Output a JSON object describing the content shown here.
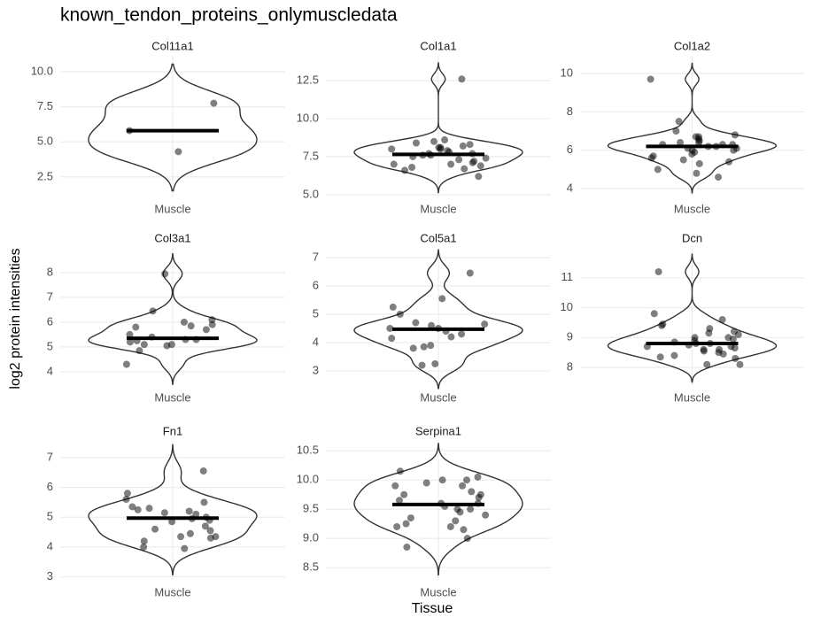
{
  "title": "known_tendon_proteins_onlymuscledata",
  "x_label": "Tissue",
  "y_label": "log2 protein intensities",
  "chart_data": [
    {
      "type": "violin",
      "title": "Col11a1",
      "categories": [
        "Muscle"
      ],
      "values": [
        7.75,
        5.8,
        4.3
      ],
      "median": 5.8,
      "ylim": [
        1.1,
        11.14
      ],
      "yticks": [
        2.5,
        {
          "value": 5,
          "label": "5.0"
        },
        7.5,
        {
          "value": 10,
          "label": "10.0"
        }
      ],
      "grid": true
    },
    {
      "type": "violin",
      "title": "Col1a1",
      "categories": [
        "Muscle"
      ],
      "values": [
        12.6,
        8.6,
        8.5,
        8.4,
        8.3,
        8.2,
        8.1,
        8.1,
        8.0,
        8.0,
        7.9,
        7.8,
        7.7,
        7.7,
        7.6,
        7.6,
        7.5,
        7.4,
        7.3,
        7.2,
        7.1,
        7.0,
        7.0,
        6.9,
        6.8,
        6.7,
        6.6,
        6.2
      ],
      "median": 7.65,
      "ylim": [
        4.88,
        14.13
      ],
      "yticks": [
        {
          "value": 5,
          "label": "5.0"
        },
        7.5,
        {
          "value": 10,
          "label": "10.0"
        },
        12.5
      ],
      "grid": true
    },
    {
      "type": "violin",
      "title": "Col1a2",
      "categories": [
        "Muscle"
      ],
      "values": [
        9.7,
        7.5,
        7.0,
        6.8,
        6.7,
        6.7,
        6.6,
        6.5,
        6.4,
        6.4,
        6.3,
        6.3,
        6.3,
        6.2,
        6.2,
        6.1,
        6.1,
        6.0,
        6.0,
        5.9,
        5.8,
        5.7,
        5.6,
        5.5,
        5.4,
        5.3,
        5.0,
        4.8,
        4.6
      ],
      "median": 6.2,
      "ylim": [
        3.59,
        10.92
      ],
      "yticks": [
        4,
        6,
        8,
        10
      ],
      "grid": true
    },
    {
      "type": "violin",
      "title": "Col3a1",
      "categories": [
        "Muscle"
      ],
      "values": [
        7.95,
        6.45,
        6.1,
        6.0,
        5.9,
        5.85,
        5.8,
        5.7,
        5.5,
        5.4,
        5.3,
        5.3,
        5.25,
        5.2,
        5.1,
        5.1,
        5.05,
        4.85,
        4.3
      ],
      "median": 5.35,
      "ylim": [
        3.46,
        9.0
      ],
      "yticks": [
        4,
        5,
        6,
        7,
        8
      ],
      "grid": true
    },
    {
      "type": "violin",
      "title": "Col5a1",
      "categories": [
        "Muscle"
      ],
      "values": [
        6.45,
        5.55,
        5.25,
        5.0,
        4.7,
        4.65,
        4.6,
        4.5,
        4.5,
        4.4,
        4.3,
        4.2,
        4.15,
        3.9,
        3.85,
        3.8,
        3.25,
        3.2
      ],
      "median": 4.47,
      "ylim": [
        2.5,
        7.34
      ],
      "yticks": [
        3,
        4,
        5,
        6,
        7
      ],
      "grid": true
    },
    {
      "type": "violin",
      "title": "Dcn",
      "categories": [
        "Muscle"
      ],
      "values": [
        11.2,
        9.8,
        9.6,
        9.45,
        9.4,
        9.3,
        9.2,
        9.15,
        9.1,
        9.0,
        9.0,
        8.95,
        8.9,
        8.85,
        8.8,
        8.8,
        8.75,
        8.7,
        8.7,
        8.65,
        8.6,
        8.6,
        8.55,
        8.5,
        8.45,
        8.4,
        8.35,
        8.3,
        8.1,
        8.1
      ],
      "median": 8.8,
      "ylim": [
        7.41,
        12.0
      ],
      "yticks": [
        8,
        9,
        10,
        11
      ],
      "grid": true
    },
    {
      "type": "violin",
      "title": "Fn1",
      "categories": [
        "Muscle"
      ],
      "values": [
        6.55,
        5.8,
        5.6,
        5.5,
        5.35,
        5.3,
        5.25,
        5.2,
        5.15,
        5.1,
        5.0,
        4.95,
        4.9,
        4.85,
        4.7,
        4.6,
        4.55,
        4.45,
        4.35,
        4.35,
        4.3,
        4.2,
        4.0,
        3.95
      ],
      "median": 4.97,
      "ylim": [
        2.9,
        7.56
      ],
      "yticks": [
        3,
        4,
        5,
        6,
        7
      ],
      "grid": true
    },
    {
      "type": "violin",
      "title": "Serpina1",
      "categories": [
        "Muscle"
      ],
      "values": [
        10.15,
        10.05,
        10.0,
        10.0,
        9.95,
        9.9,
        9.9,
        9.8,
        9.75,
        9.75,
        9.7,
        9.65,
        9.6,
        9.6,
        9.55,
        9.5,
        9.5,
        9.45,
        9.4,
        9.35,
        9.3,
        9.25,
        9.2,
        9.2,
        9.15,
        9.0,
        8.85
      ],
      "median": 9.58,
      "ylim": [
        8.29,
        10.67
      ],
      "yticks": [
        {
          "value": 8.5,
          "label": "8.5"
        },
        {
          "value": 9,
          "label": "9.0"
        },
        {
          "value": 9.5,
          "label": "9.5"
        },
        {
          "value": 10,
          "label": "10.0"
        },
        {
          "value": 10.5,
          "label": "10.5"
        }
      ],
      "grid": true
    }
  ]
}
